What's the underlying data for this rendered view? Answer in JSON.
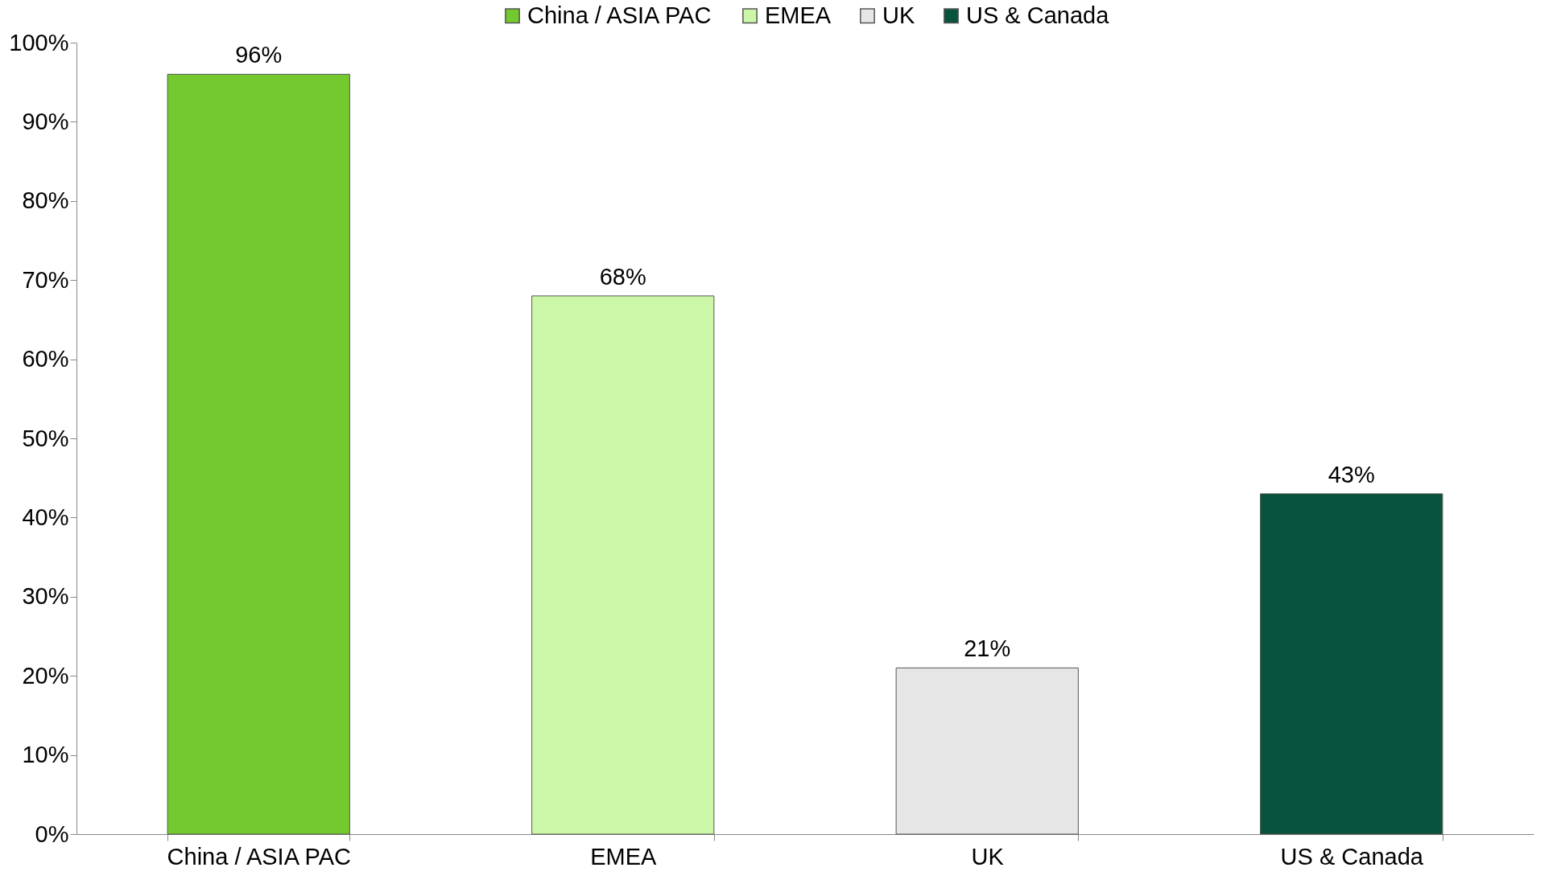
{
  "chart_data": {
    "type": "bar",
    "categories": [
      "China / ASIA PAC",
      "EMEA",
      "UK",
      "US & Canada"
    ],
    "series": [
      {
        "name": "China / ASIA PAC",
        "color": "#73c92d",
        "values": [
          96,
          null,
          null,
          null
        ],
        "value_labels": [
          "96%",
          null,
          null,
          null
        ]
      },
      {
        "name": "EMEA",
        "color": "#ccf7a8",
        "values": [
          null,
          68,
          null,
          null
        ],
        "value_labels": [
          null,
          "68%",
          null,
          null
        ]
      },
      {
        "name": "UK",
        "color": "#e6e6e6",
        "values": [
          null,
          null,
          21,
          null
        ],
        "value_labels": [
          null,
          null,
          "21%",
          null
        ]
      },
      {
        "name": "US & Canada",
        "color": "#08533e",
        "values": [
          null,
          null,
          null,
          43
        ],
        "value_labels": [
          null,
          null,
          null,
          "43%"
        ]
      }
    ],
    "ylim": [
      0,
      100
    ],
    "yticks": [
      {
        "value": 0,
        "label": "0%"
      },
      {
        "value": 10,
        "label": "10%"
      },
      {
        "value": 20,
        "label": "20%"
      },
      {
        "value": 30,
        "label": "30%"
      },
      {
        "value": 40,
        "label": "40%"
      },
      {
        "value": 50,
        "label": "50%"
      },
      {
        "value": 60,
        "label": "60%"
      },
      {
        "value": 70,
        "label": "70%"
      },
      {
        "value": 80,
        "label": "80%"
      },
      {
        "value": 90,
        "label": "90%"
      },
      {
        "value": 100,
        "label": "100%"
      }
    ],
    "grid": false,
    "legend": "top"
  }
}
